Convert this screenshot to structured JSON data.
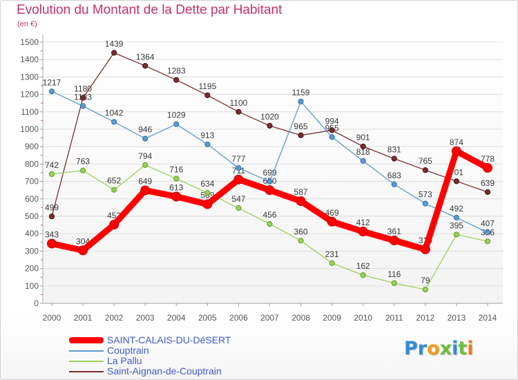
{
  "chart_data": {
    "type": "line",
    "title": "Evolution du Montant de la Dette par Habitant",
    "subtitle": "(en €)",
    "x": [
      "2000",
      "2001",
      "2002",
      "2003",
      "2004",
      "2005",
      "2006",
      "2007",
      "2008",
      "2009",
      "2010",
      "2011",
      "2012",
      "2013",
      "2014"
    ],
    "ylim": [
      0,
      1500
    ],
    "yticks": [
      0,
      100,
      200,
      300,
      400,
      500,
      600,
      700,
      800,
      900,
      1000,
      1100,
      1200,
      1300,
      1400,
      1500
    ],
    "grid": true,
    "legend": "bottom-left",
    "series": [
      {
        "name": "SAINT-CALAIS-DU-DéSERT",
        "color": "#ff0000",
        "marker_edge": "#c40000",
        "values": [
          343,
          304,
          452,
          649,
          613,
          569,
          711,
          650,
          587,
          469,
          412,
          361,
          310,
          874,
          778
        ]
      },
      {
        "name": "Couptrain",
        "color": "#5b9bd5",
        "marker_edge": "#2f6fa8",
        "values": [
          1217,
          1133,
          1042,
          946,
          1029,
          913,
          777,
          699,
          1159,
          955,
          818,
          683,
          573,
          492,
          407
        ]
      },
      {
        "name": "La Pallu",
        "color": "#9ad15a",
        "marker_edge": "#5f9a25",
        "values": [
          742,
          763,
          652,
          794,
          716,
          634,
          547,
          456,
          360,
          231,
          162,
          116,
          79,
          395,
          356
        ]
      },
      {
        "name": "Saint-Aignan-de-Couptrain",
        "color": "#7a2e2e",
        "marker_edge": "#3d0e0e",
        "values": [
          499,
          1180,
          1439,
          1364,
          1283,
          1195,
          1100,
          1020,
          965,
          994,
          901,
          831,
          765,
          701,
          639
        ]
      }
    ]
  },
  "logo": {
    "text": "Proxiti",
    "colors": [
      "#2e8ddb",
      "#2e8ddb",
      "#f29b1d",
      "#6fbd3b",
      "#2e8ddb",
      "#6fbd3b",
      "#f07c1e"
    ]
  }
}
